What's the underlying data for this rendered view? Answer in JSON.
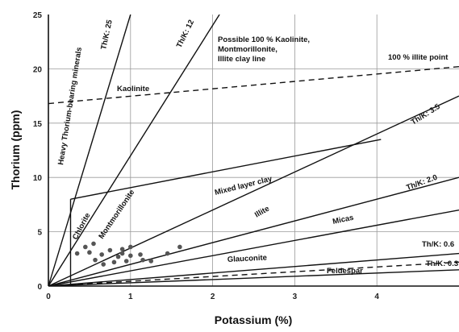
{
  "chart_data": {
    "type": "scatter",
    "title": "",
    "xlabel": "Potassium (%)",
    "ylabel": "Thorium (ppm)",
    "xlim": [
      0,
      5
    ],
    "ylim": [
      0,
      25
    ],
    "x_ticks": [
      "0",
      "1",
      "2",
      "3",
      "4"
    ],
    "y_ticks": [
      "0",
      "5",
      "10",
      "15",
      "20",
      "25"
    ],
    "grid": true,
    "colors": {
      "line": "#111111",
      "grid": "#9a9a9a",
      "points": "#555555"
    },
    "ratio_lines": [
      {
        "label": "Th/K: 25",
        "slope": 25
      },
      {
        "label": "Th/K: 12",
        "slope": 12
      },
      {
        "label": "Th/K: 3.5",
        "slope": 3.5
      },
      {
        "label": "Th/K: 2.0",
        "slope": 2.0
      },
      {
        "slope": 1.4
      },
      {
        "label": "Th/K: 0.6",
        "slope": 0.6
      },
      {
        "label": "Th/K: 0.3",
        "slope": 0.3
      }
    ],
    "boundary_segments": [
      {
        "x": [
          0.27,
          0.27
        ],
        "y": [
          0,
          8.0
        ]
      },
      {
        "x": [
          0.27,
          4.05
        ],
        "y": [
          8.0,
          13.5
        ]
      }
    ],
    "dashed_lines": [
      {
        "label": "Possible 100 % Kaolinite, Montmorillonite, Illite clay line",
        "x": [
          0,
          5
        ],
        "y": [
          16.8,
          20.2
        ]
      },
      {
        "x": [
          0,
          5
        ],
        "y": [
          0,
          2.2
        ]
      }
    ],
    "point_labels": [
      {
        "label": "100 % illite point",
        "x": 5.0,
        "y": 20.8
      }
    ],
    "regions": [
      "Heavy Thorium-bearing minerals",
      "Kaolinite",
      "Chlorite",
      "Montmorillonite",
      "Mixed layer clay",
      "Illite",
      "Micas",
      "Glauconite",
      "Feldespar"
    ],
    "points": [
      {
        "x": 0.35,
        "y": 3.0
      },
      {
        "x": 0.45,
        "y": 3.6
      },
      {
        "x": 0.5,
        "y": 3.1
      },
      {
        "x": 0.55,
        "y": 3.9
      },
      {
        "x": 0.57,
        "y": 2.4
      },
      {
        "x": 0.65,
        "y": 2.9
      },
      {
        "x": 0.67,
        "y": 2.0
      },
      {
        "x": 0.75,
        "y": 3.3
      },
      {
        "x": 0.8,
        "y": 2.2
      },
      {
        "x": 0.85,
        "y": 2.7
      },
      {
        "x": 0.9,
        "y": 3.0
      },
      {
        "x": 0.9,
        "y": 3.4
      },
      {
        "x": 0.95,
        "y": 2.3
      },
      {
        "x": 1.0,
        "y": 3.6
      },
      {
        "x": 1.0,
        "y": 2.8
      },
      {
        "x": 1.12,
        "y": 2.9
      },
      {
        "x": 1.15,
        "y": 2.4
      },
      {
        "x": 1.25,
        "y": 2.3
      },
      {
        "x": 1.45,
        "y": 3.0
      },
      {
        "x": 1.6,
        "y": 3.6
      }
    ]
  }
}
